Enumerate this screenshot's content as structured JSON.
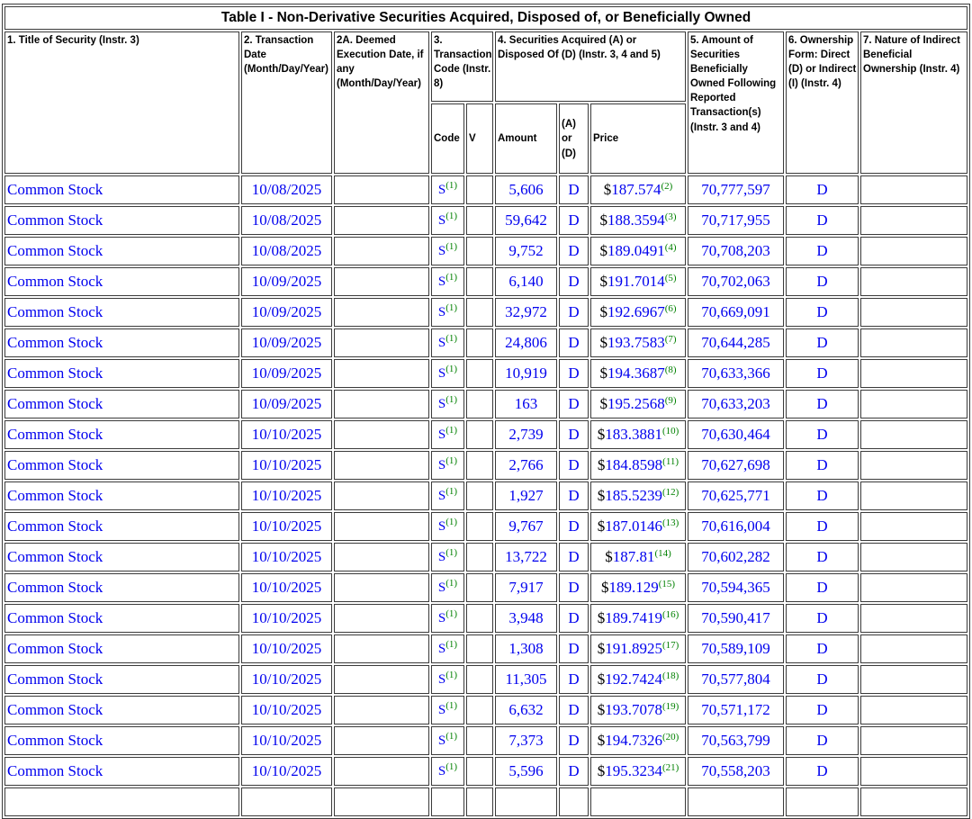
{
  "table": {
    "title": "Table I - Non-Derivative Securities Acquired, Disposed of, or Beneficially Owned",
    "headers": {
      "col1": "1. Title of Security (Instr. 3)",
      "col2": "2. Transaction Date (Month/Day/Year)",
      "col2a": "2A. Deemed Execution Date, if any (Month/Day/Year)",
      "col3": "3. Transaction Code (Instr. 8)",
      "col4": "4. Securities Acquired (A) or Disposed Of (D) (Instr. 3, 4 and 5)",
      "col5": "5. Amount of Securities Beneficially Owned Following Reported Transaction(s) (Instr. 3 and 4)",
      "col6": "6. Ownership Form: Direct (D) or Indirect (I) (Instr. 4)",
      "col7": "7. Nature of Indirect Beneficial Ownership (Instr. 4)",
      "sub_code": "Code",
      "sub_v": "V",
      "sub_amount": "Amount",
      "sub_ad": "(A) or (D)",
      "sub_price": "Price"
    },
    "rows": [
      {
        "title": "Common Stock",
        "date": "10/08/2025",
        "deemed": "",
        "code": "S",
        "code_fn": "(1)",
        "v": "",
        "amount": "5,606",
        "ad": "D",
        "currency": "$",
        "price": "187.574",
        "price_fn": "(2)",
        "owned": "70,777,597",
        "form": "D",
        "nature": ""
      },
      {
        "title": "Common Stock",
        "date": "10/08/2025",
        "deemed": "",
        "code": "S",
        "code_fn": "(1)",
        "v": "",
        "amount": "59,642",
        "ad": "D",
        "currency": "$",
        "price": "188.3594",
        "price_fn": "(3)",
        "owned": "70,717,955",
        "form": "D",
        "nature": ""
      },
      {
        "title": "Common Stock",
        "date": "10/08/2025",
        "deemed": "",
        "code": "S",
        "code_fn": "(1)",
        "v": "",
        "amount": "9,752",
        "ad": "D",
        "currency": "$",
        "price": "189.0491",
        "price_fn": "(4)",
        "owned": "70,708,203",
        "form": "D",
        "nature": ""
      },
      {
        "title": "Common Stock",
        "date": "10/09/2025",
        "deemed": "",
        "code": "S",
        "code_fn": "(1)",
        "v": "",
        "amount": "6,140",
        "ad": "D",
        "currency": "$",
        "price": "191.7014",
        "price_fn": "(5)",
        "owned": "70,702,063",
        "form": "D",
        "nature": ""
      },
      {
        "title": "Common Stock",
        "date": "10/09/2025",
        "deemed": "",
        "code": "S",
        "code_fn": "(1)",
        "v": "",
        "amount": "32,972",
        "ad": "D",
        "currency": "$",
        "price": "192.6967",
        "price_fn": "(6)",
        "owned": "70,669,091",
        "form": "D",
        "nature": ""
      },
      {
        "title": "Common Stock",
        "date": "10/09/2025",
        "deemed": "",
        "code": "S",
        "code_fn": "(1)",
        "v": "",
        "amount": "24,806",
        "ad": "D",
        "currency": "$",
        "price": "193.7583",
        "price_fn": "(7)",
        "owned": "70,644,285",
        "form": "D",
        "nature": ""
      },
      {
        "title": "Common Stock",
        "date": "10/09/2025",
        "deemed": "",
        "code": "S",
        "code_fn": "(1)",
        "v": "",
        "amount": "10,919",
        "ad": "D",
        "currency": "$",
        "price": "194.3687",
        "price_fn": "(8)",
        "owned": "70,633,366",
        "form": "D",
        "nature": ""
      },
      {
        "title": "Common Stock",
        "date": "10/09/2025",
        "deemed": "",
        "code": "S",
        "code_fn": "(1)",
        "v": "",
        "amount": "163",
        "ad": "D",
        "currency": "$",
        "price": "195.2568",
        "price_fn": "(9)",
        "owned": "70,633,203",
        "form": "D",
        "nature": ""
      },
      {
        "title": "Common Stock",
        "date": "10/10/2025",
        "deemed": "",
        "code": "S",
        "code_fn": "(1)",
        "v": "",
        "amount": "2,739",
        "ad": "D",
        "currency": "$",
        "price": "183.3881",
        "price_fn": "(10)",
        "owned": "70,630,464",
        "form": "D",
        "nature": ""
      },
      {
        "title": "Common Stock",
        "date": "10/10/2025",
        "deemed": "",
        "code": "S",
        "code_fn": "(1)",
        "v": "",
        "amount": "2,766",
        "ad": "D",
        "currency": "$",
        "price": "184.8598",
        "price_fn": "(11)",
        "owned": "70,627,698",
        "form": "D",
        "nature": ""
      },
      {
        "title": "Common Stock",
        "date": "10/10/2025",
        "deemed": "",
        "code": "S",
        "code_fn": "(1)",
        "v": "",
        "amount": "1,927",
        "ad": "D",
        "currency": "$",
        "price": "185.5239",
        "price_fn": "(12)",
        "owned": "70,625,771",
        "form": "D",
        "nature": ""
      },
      {
        "title": "Common Stock",
        "date": "10/10/2025",
        "deemed": "",
        "code": "S",
        "code_fn": "(1)",
        "v": "",
        "amount": "9,767",
        "ad": "D",
        "currency": "$",
        "price": "187.0146",
        "price_fn": "(13)",
        "owned": "70,616,004",
        "form": "D",
        "nature": ""
      },
      {
        "title": "Common Stock",
        "date": "10/10/2025",
        "deemed": "",
        "code": "S",
        "code_fn": "(1)",
        "v": "",
        "amount": "13,722",
        "ad": "D",
        "currency": "$",
        "price": "187.81",
        "price_fn": "(14)",
        "owned": "70,602,282",
        "form": "D",
        "nature": ""
      },
      {
        "title": "Common Stock",
        "date": "10/10/2025",
        "deemed": "",
        "code": "S",
        "code_fn": "(1)",
        "v": "",
        "amount": "7,917",
        "ad": "D",
        "currency": "$",
        "price": "189.129",
        "price_fn": "(15)",
        "owned": "70,594,365",
        "form": "D",
        "nature": ""
      },
      {
        "title": "Common Stock",
        "date": "10/10/2025",
        "deemed": "",
        "code": "S",
        "code_fn": "(1)",
        "v": "",
        "amount": "3,948",
        "ad": "D",
        "currency": "$",
        "price": "189.7419",
        "price_fn": "(16)",
        "owned": "70,590,417",
        "form": "D",
        "nature": ""
      },
      {
        "title": "Common Stock",
        "date": "10/10/2025",
        "deemed": "",
        "code": "S",
        "code_fn": "(1)",
        "v": "",
        "amount": "1,308",
        "ad": "D",
        "currency": "$",
        "price": "191.8925",
        "price_fn": "(17)",
        "owned": "70,589,109",
        "form": "D",
        "nature": ""
      },
      {
        "title": "Common Stock",
        "date": "10/10/2025",
        "deemed": "",
        "code": "S",
        "code_fn": "(1)",
        "v": "",
        "amount": "11,305",
        "ad": "D",
        "currency": "$",
        "price": "192.7424",
        "price_fn": "(18)",
        "owned": "70,577,804",
        "form": "D",
        "nature": ""
      },
      {
        "title": "Common Stock",
        "date": "10/10/2025",
        "deemed": "",
        "code": "S",
        "code_fn": "(1)",
        "v": "",
        "amount": "6,632",
        "ad": "D",
        "currency": "$",
        "price": "193.7078",
        "price_fn": "(19)",
        "owned": "70,571,172",
        "form": "D",
        "nature": ""
      },
      {
        "title": "Common Stock",
        "date": "10/10/2025",
        "deemed": "",
        "code": "S",
        "code_fn": "(1)",
        "v": "",
        "amount": "7,373",
        "ad": "D",
        "currency": "$",
        "price": "194.7326",
        "price_fn": "(20)",
        "owned": "70,563,799",
        "form": "D",
        "nature": ""
      },
      {
        "title": "Common Stock",
        "date": "10/10/2025",
        "deemed": "",
        "code": "S",
        "code_fn": "(1)",
        "v": "",
        "amount": "5,596",
        "ad": "D",
        "currency": "$",
        "price": "195.3234",
        "price_fn": "(21)",
        "owned": "70,558,203",
        "form": "D",
        "nature": ""
      }
    ]
  },
  "colors": {
    "form_data_blue": "#0000EE",
    "footnote_green": "#008000",
    "border_gray": "#3a3a3a",
    "header_text": "#000000"
  }
}
